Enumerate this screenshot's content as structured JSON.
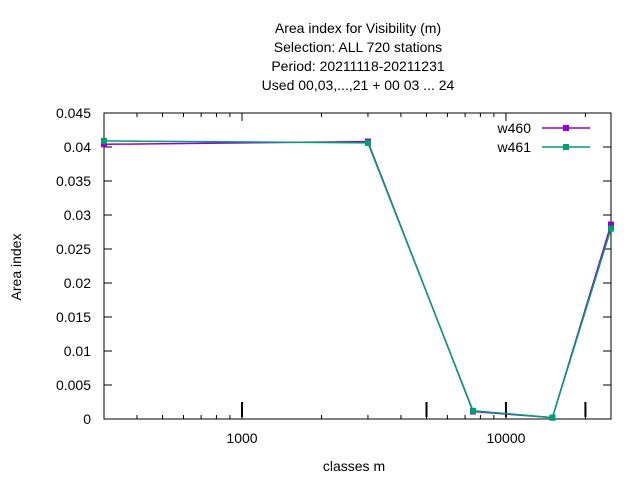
{
  "chart_data": {
    "type": "line",
    "title_lines": [
      "Area index  for Visibility (m)",
      "Selection: ALL     720 stations",
      "Period: 20211118-20211231",
      "Used  00,03,...,21  + 00 03 ... 24"
    ],
    "xlabel": "classes m",
    "ylabel": "Area index",
    "x_scale": "log",
    "xlim": [
      300,
      25000
    ],
    "ylim": [
      0,
      0.045
    ],
    "x_ticks": [
      1000,
      10000
    ],
    "x_tick_labels": [
      "1000",
      "10000"
    ],
    "y_ticks": [
      0,
      0.005,
      0.01,
      0.015,
      0.02,
      0.025,
      0.03,
      0.035,
      0.04,
      0.045
    ],
    "y_tick_labels": [
      "0",
      "0.005",
      "0.01",
      "0.015",
      "0.02",
      "0.025",
      "0.03",
      "0.035",
      "0.04",
      "0.045"
    ],
    "extra_marks_x": [
      1000,
      5000,
      10000,
      20000
    ],
    "grid": false,
    "legend_position": "top-right",
    "series": [
      {
        "name": "w460",
        "color": "#9400d3",
        "x": [
          300,
          3000,
          7500,
          15000,
          25000
        ],
        "y": [
          0.0404,
          0.0408,
          0.0011,
          0.0002,
          0.0286
        ]
      },
      {
        "name": "w461",
        "color": "#009e73",
        "x": [
          300,
          3000,
          7500,
          15000,
          25000
        ],
        "y": [
          0.0409,
          0.0406,
          0.0012,
          0.0002,
          0.028
        ]
      }
    ]
  }
}
